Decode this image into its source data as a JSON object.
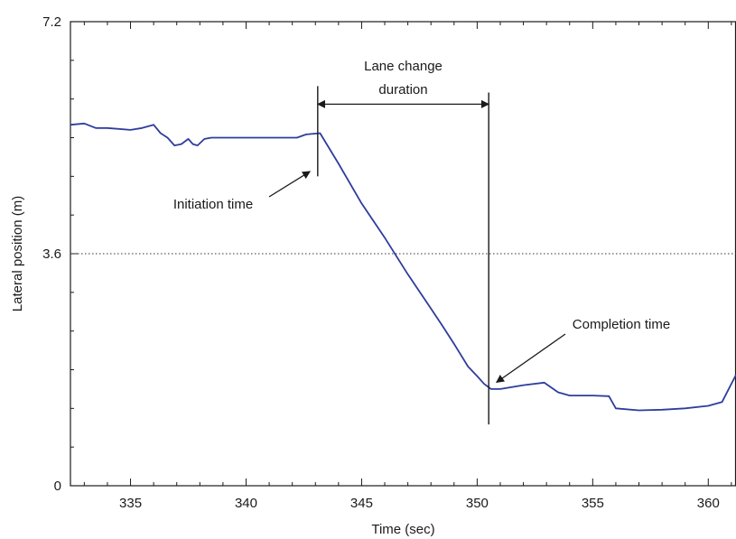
{
  "chart_data": {
    "type": "line",
    "title": "",
    "xlabel": "Time (sec)",
    "ylabel": "Lateral position (m)",
    "xlim": [
      332.4,
      361.2
    ],
    "ylim": [
      0,
      7.2
    ],
    "x_ticks": [
      335,
      340,
      345,
      350,
      355,
      360
    ],
    "x_tick_labels": [
      "335",
      "340",
      "345",
      "350",
      "355",
      "360"
    ],
    "y_ticks": [
      0,
      3.6,
      7.2
    ],
    "y_tick_labels": [
      "0",
      "3.6",
      "7.2"
    ],
    "reference_line": {
      "y": 3.6,
      "style": "dotted"
    },
    "grid": false,
    "series": [
      {
        "color": "#2e3d9c",
        "x": [
          332.4,
          333.0,
          333.5,
          334.0,
          335.0,
          335.5,
          336.0,
          336.3,
          336.6,
          336.9,
          337.2,
          337.5,
          337.7,
          337.9,
          338.2,
          338.5,
          339.0,
          340.0,
          341.0,
          342.2,
          342.6,
          343.2,
          344.0,
          345.0,
          346.0,
          347.0,
          348.0,
          348.5,
          349.0,
          349.6,
          350.0,
          350.3,
          350.6,
          351.0,
          352.0,
          352.9,
          353.5,
          354.0,
          355.0,
          355.7,
          356.0,
          357.0,
          358.0,
          359.0,
          360.0,
          360.6,
          361.2
        ],
        "y": [
          5.6,
          5.62,
          5.55,
          5.55,
          5.52,
          5.55,
          5.6,
          5.47,
          5.4,
          5.28,
          5.3,
          5.38,
          5.3,
          5.28,
          5.38,
          5.4,
          5.4,
          5.4,
          5.4,
          5.4,
          5.45,
          5.47,
          5.0,
          4.38,
          3.85,
          3.28,
          2.75,
          2.48,
          2.2,
          1.85,
          1.7,
          1.58,
          1.5,
          1.5,
          1.56,
          1.6,
          1.45,
          1.4,
          1.4,
          1.39,
          1.2,
          1.17,
          1.18,
          1.2,
          1.24,
          1.3,
          1.72
        ]
      }
    ],
    "markers": [
      {
        "x": 343.1,
        "y_from": 4.8,
        "y_to": 6.2
      },
      {
        "x": 350.5,
        "y_from": 0.95,
        "y_to": 6.1
      }
    ],
    "annotations": {
      "initiation": "Initiation time",
      "completion": "Completion time",
      "duration_line1": "Lane change",
      "duration_line2": "duration"
    },
    "annotation_points": {
      "initiation": {
        "x": 343.0,
        "y": 4.82
      },
      "completion": {
        "x": 350.6,
        "y": 1.52
      },
      "duration_arrow": {
        "x_from": 343.1,
        "x_to": 350.5,
        "y": 5.92
      }
    }
  }
}
